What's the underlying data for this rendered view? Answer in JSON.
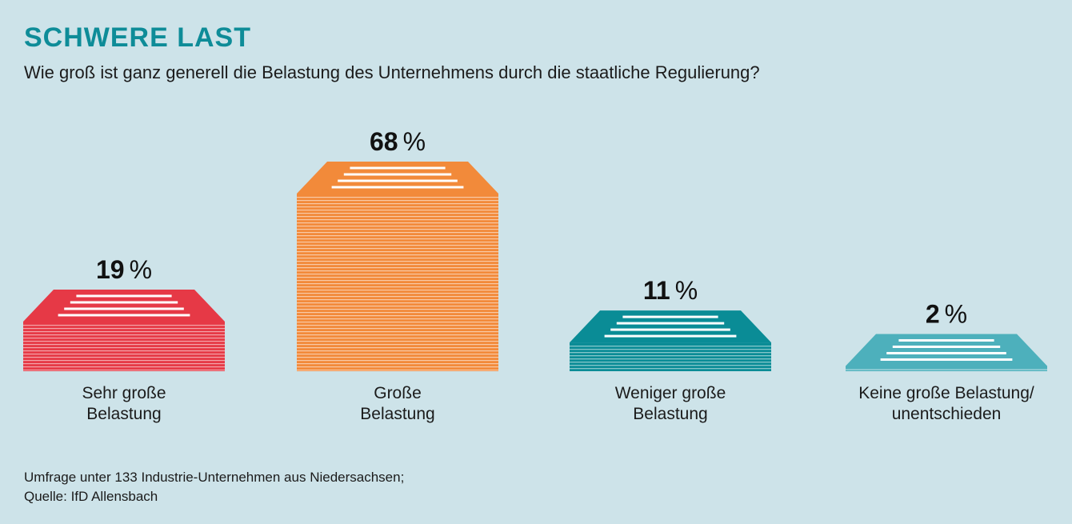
{
  "title": "SCHWERE LAST",
  "subtitle": "Wie groß ist ganz generell die Belastung des Unternehmens durch die staatliche Regulierung?",
  "footnote": {
    "line1": "Umfrage unter 133 Industrie-Unternehmen aus Niedersachsen;",
    "line2": "Quelle: IfD Allensbach"
  },
  "chart_data": {
    "type": "bar",
    "title": "SCHWERE LAST",
    "unit": "%",
    "categories": [
      [
        "Sehr große",
        "Belastung"
      ],
      [
        "Große",
        "Belastung"
      ],
      [
        "Weniger große",
        "Belastung"
      ],
      [
        "Keine große Belastung/",
        "unentschieden"
      ]
    ],
    "values": [
      19,
      68,
      11,
      2
    ],
    "value_labels": [
      "19",
      "68",
      "11",
      "2"
    ],
    "colors": [
      "#e63946",
      "#f28a3a",
      "#0a8c96",
      "#4db0bc"
    ],
    "grid": false,
    "legend": "none"
  }
}
